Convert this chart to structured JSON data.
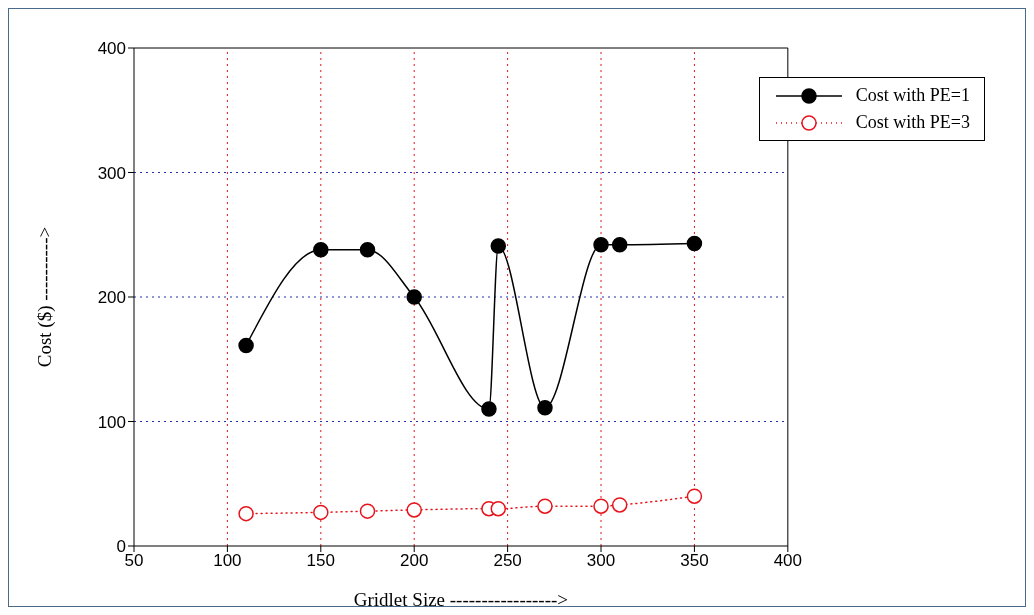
{
  "chart_data": {
    "type": "line",
    "xlabel": "Gridlet Size ----------------->",
    "ylabel": "Cost ($) ---------->",
    "xlim": [
      50,
      400
    ],
    "xticks": [
      50,
      100,
      150,
      200,
      250,
      300,
      350,
      400
    ],
    "ylim": [
      0,
      400
    ],
    "yticks": [
      0,
      100,
      200,
      300,
      400
    ],
    "grid": true,
    "legend": "top right",
    "marker": "circle",
    "series": [
      {
        "name": "Cost with PE=1",
        "color": "#000000",
        "line_style": "solid",
        "x": [
          110,
          150,
          175,
          200,
          240,
          245,
          270,
          300,
          310,
          350
        ],
        "values": [
          161,
          238,
          238,
          200,
          110,
          241,
          111,
          242,
          242,
          243
        ]
      },
      {
        "name": "Cost with PE=3",
        "color": "#e8141c",
        "line_style": "dotted",
        "x": [
          110,
          150,
          175,
          200,
          240,
          245,
          270,
          300,
          310,
          350
        ],
        "values": [
          26,
          27,
          28,
          29,
          30,
          30,
          32,
          32,
          33,
          40
        ]
      }
    ]
  }
}
